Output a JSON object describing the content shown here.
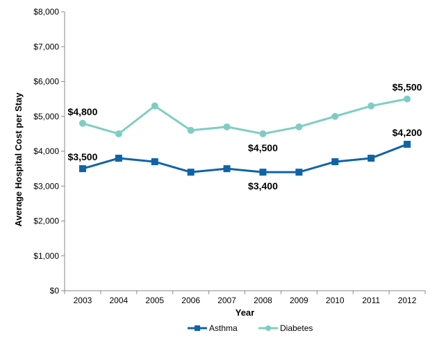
{
  "chart_data": {
    "type": "line",
    "title": "",
    "xlabel": "Year",
    "ylabel": "Average Hospital  Cost per Stay",
    "categories": [
      "2003",
      "2004",
      "2005",
      "2006",
      "2007",
      "2008",
      "2009",
      "2010",
      "2011",
      "2012"
    ],
    "ylim": [
      0,
      8000
    ],
    "yticks": [
      0,
      1000,
      2000,
      3000,
      4000,
      5000,
      6000,
      7000,
      8000
    ],
    "ytick_labels": [
      "$0",
      "$1,000",
      "$2,000",
      "$3,000",
      "$4,000",
      "$5,000",
      "$6,000",
      "$7,000",
      "$8,000"
    ],
    "grid": false,
    "legend_position": "bottom",
    "series": [
      {
        "name": "Asthma",
        "color": "#0f63a8",
        "marker": "square",
        "values": [
          3500,
          3800,
          3700,
          3400,
          3500,
          3400,
          3400,
          3700,
          3800,
          4200
        ]
      },
      {
        "name": "Diabetes",
        "color": "#7ecdc3",
        "marker": "circle",
        "values": [
          4800,
          4500,
          5300,
          4600,
          4700,
          4500,
          4700,
          5000,
          5300,
          5500
        ]
      }
    ],
    "annotations": [
      {
        "series": "Diabetes",
        "x": "2003",
        "value": 4800,
        "text": "$4,800",
        "pos": "above"
      },
      {
        "series": "Diabetes",
        "x": "2008",
        "value": 4500,
        "text": "$4,500",
        "pos": "below"
      },
      {
        "series": "Diabetes",
        "x": "2012",
        "value": 5500,
        "text": "$5,500",
        "pos": "above"
      },
      {
        "series": "Asthma",
        "x": "2003",
        "value": 3500,
        "text": "$3,500",
        "pos": "above"
      },
      {
        "series": "Asthma",
        "x": "2008",
        "value": 3400,
        "text": "$3,400",
        "pos": "below"
      },
      {
        "series": "Asthma",
        "x": "2012",
        "value": 4200,
        "text": "$4,200",
        "pos": "above"
      }
    ]
  }
}
